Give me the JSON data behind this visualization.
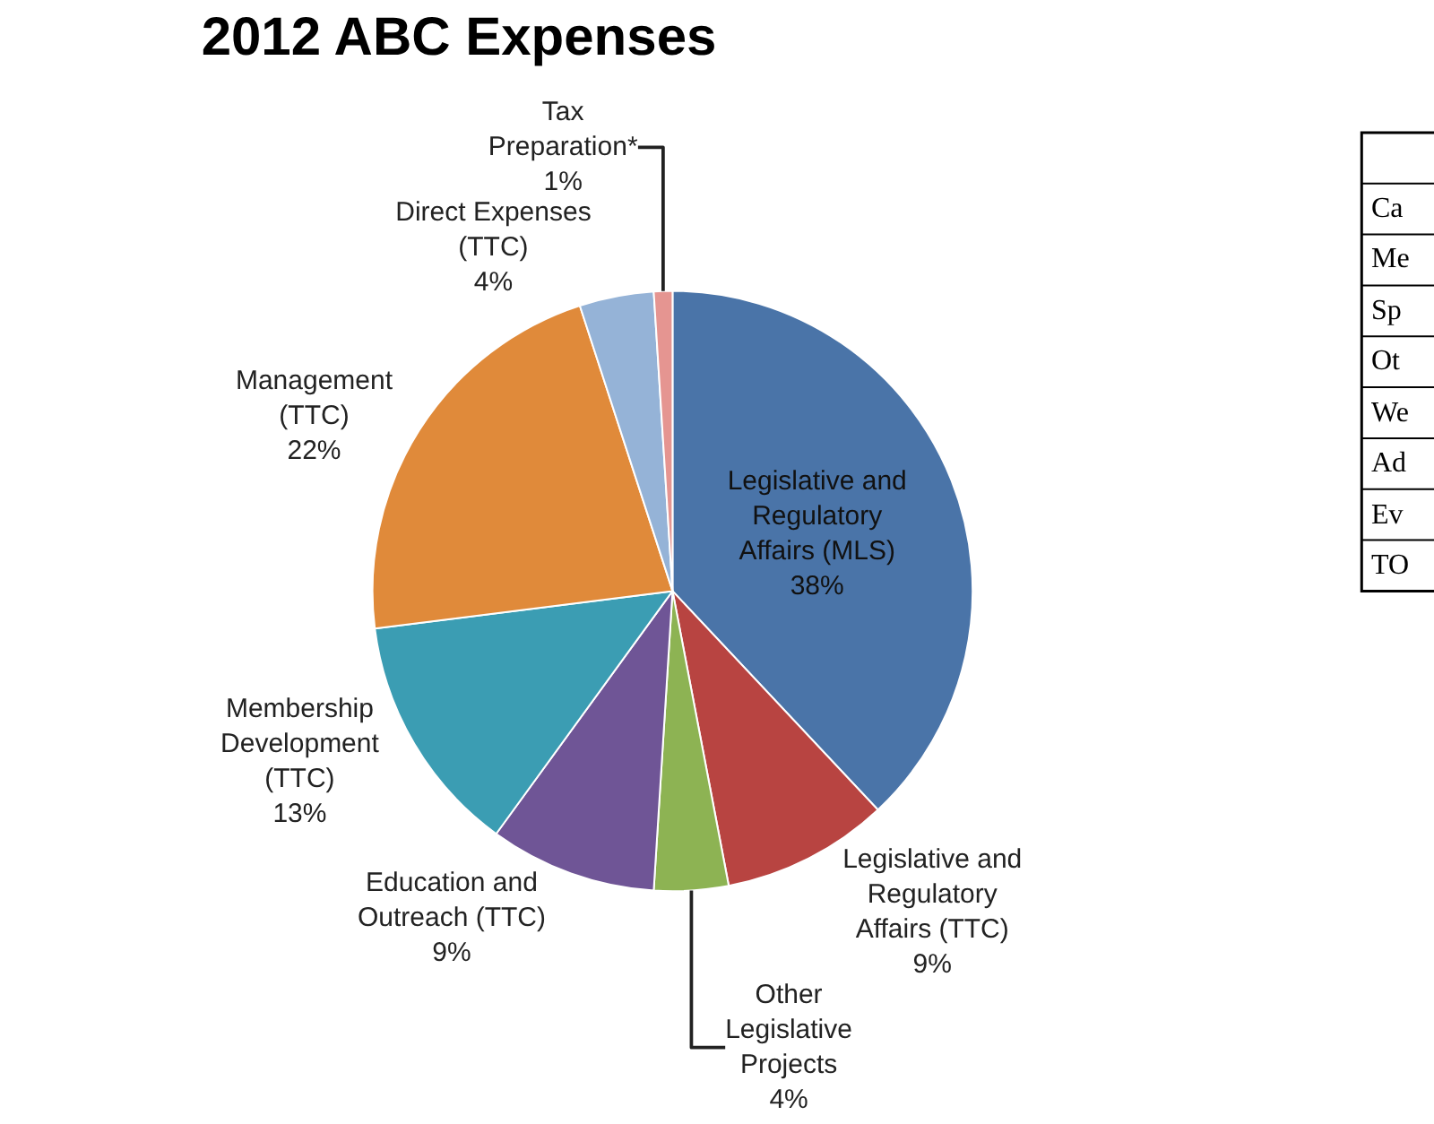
{
  "chart_data": [
    {
      "type": "pie",
      "title": "2012 ABC Expenses",
      "categories": [
        "Legislative and\nRegulatory\nAffairs (MLS)",
        "Legislative and\nRegulatory\nAffairs (TTC)",
        "Other\nLegislative\nProjects",
        "Education and\nOutreach (TTC)",
        "Membership\nDevelopment\n(TTC)",
        "Management\n(TTC)",
        "Direct Expenses\n(TTC)",
        "Tax\nPreparation*"
      ],
      "values": [
        38,
        9,
        4,
        9,
        13,
        22,
        4,
        1
      ],
      "value_labels": [
        "38%",
        "9%",
        "4%",
        "9%",
        "13%",
        "22%",
        "4%",
        "1%"
      ],
      "colors": [
        "#4a74a8",
        "#b84441",
        "#8db353",
        "#6f5596",
        "#3b9db3",
        "#e08a3a",
        "#95b3d7",
        "#e59591"
      ]
    },
    {
      "type": "other",
      "annotations": [
        "Ca",
        "Me",
        "Sp",
        "Ot",
        "We",
        "Ad",
        "Ev",
        "TO"
      ]
    }
  ]
}
